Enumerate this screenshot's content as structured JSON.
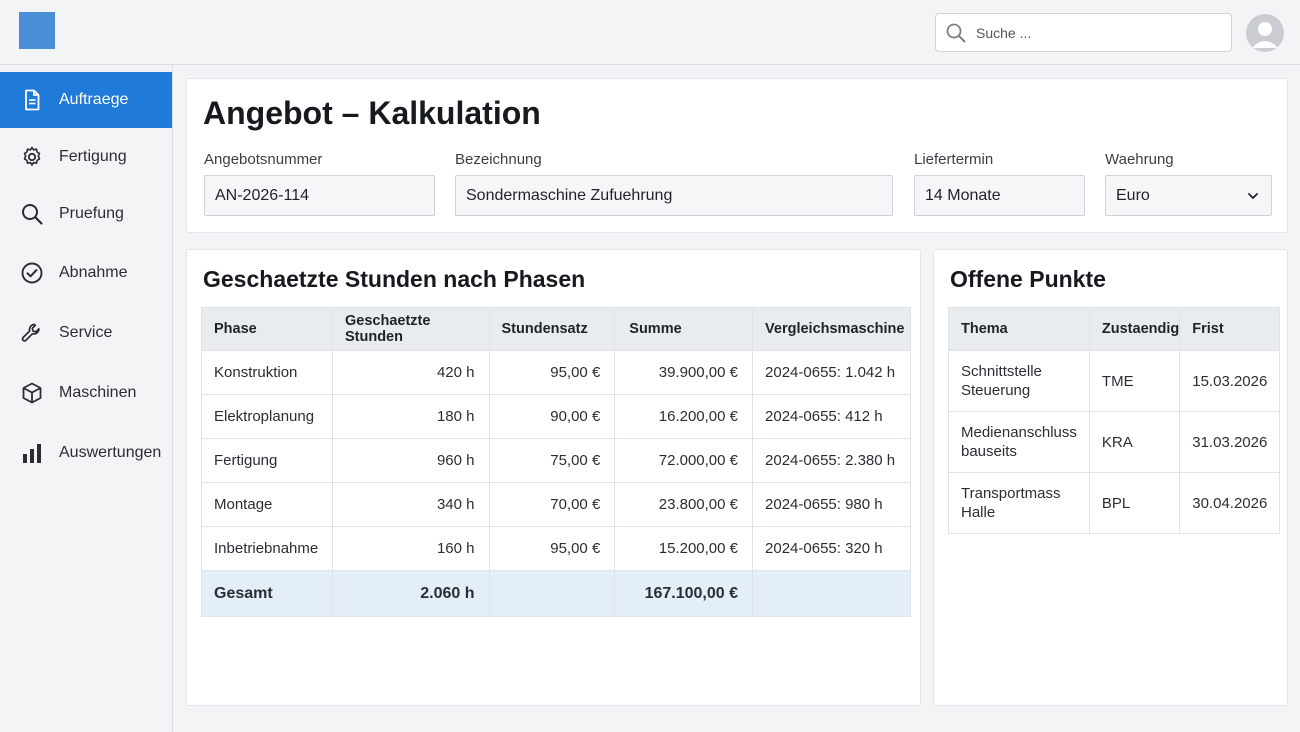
{
  "header": {
    "search_placeholder": "Suche ..."
  },
  "sidebar": {
    "items": [
      {
        "label": "Auftraege",
        "icon": "document-icon",
        "active": true
      },
      {
        "label": "Fertigung",
        "icon": "gear-icon",
        "active": false
      },
      {
        "label": "Pruefung",
        "icon": "search-icon",
        "active": false
      },
      {
        "label": "Abnahme",
        "icon": "check-circle-icon",
        "active": false
      },
      {
        "label": "Service",
        "icon": "wrench-icon",
        "active": false
      },
      {
        "label": "Maschinen",
        "icon": "cube-icon",
        "active": false
      },
      {
        "label": "Auswertungen",
        "icon": "bar-chart-icon",
        "active": false
      }
    ]
  },
  "form": {
    "title": "Angebot – Kalkulation",
    "angebotsnummer_label": "Angebotsnummer",
    "angebotsnummer_value": "AN-2026-114",
    "bezeichnung_label": "Bezeichnung",
    "bezeichnung_value": "Sondermaschine Zufuehrung",
    "liefertermin_label": "Liefertermin",
    "liefertermin_value": "14 Monate",
    "waehrung_label": "Waehrung",
    "waehrung_value": "Euro"
  },
  "phases": {
    "title": "Geschaetzte Stunden nach Phasen",
    "columns": [
      "Phase",
      "Geschaetzte Stunden",
      "Stundensatz",
      "Summe",
      "Vergleichsmaschine"
    ],
    "rows": [
      {
        "phase": "Konstruktion",
        "hours": "420 h",
        "rate": "95,00 €",
        "sum": "39.900,00 €",
        "compare": "2024-0655:  1.042 h"
      },
      {
        "phase": "Elektroplanung",
        "hours": "180 h",
        "rate": "90,00 €",
        "sum": "16.200,00 €",
        "compare": "2024-0655:  412 h"
      },
      {
        "phase": "Fertigung",
        "hours": "960 h",
        "rate": "75,00 €",
        "sum": "72.000,00 €",
        "compare": "2024-0655:  2.380 h"
      },
      {
        "phase": "Montage",
        "hours": "340 h",
        "rate": "70,00 €",
        "sum": "23.800,00 €",
        "compare": "2024-0655:  980 h"
      },
      {
        "phase": "Inbetriebnahme",
        "hours": "160 h",
        "rate": "95,00 €",
        "sum": "15.200,00 €",
        "compare": "2024-0655:  320 h"
      }
    ],
    "total": {
      "label": "Gesamt",
      "hours": "2.060 h",
      "sum": "167.100,00 €"
    }
  },
  "open_points": {
    "title": "Offene Punkte",
    "columns": [
      "Thema",
      "Zustaendig",
      "Frist"
    ],
    "rows": [
      {
        "topic_line1": "Schnittstelle",
        "topic_line2": "Steuerung",
        "owner": "TME",
        "due": "15.03.2026"
      },
      {
        "topic_line1": "Medienanschluss",
        "topic_line2": "bauseits",
        "owner": "KRA",
        "due": "31.03.2026"
      },
      {
        "topic_line1": "Transportmass",
        "topic_line2": "Halle",
        "owner": "BPL",
        "due": "30.04.2026"
      }
    ]
  },
  "colors": {
    "accent": "#1f7ad8",
    "logo": "#4a90d9",
    "total_row": "#e3eef9",
    "header_cell": "#e9ecef"
  }
}
